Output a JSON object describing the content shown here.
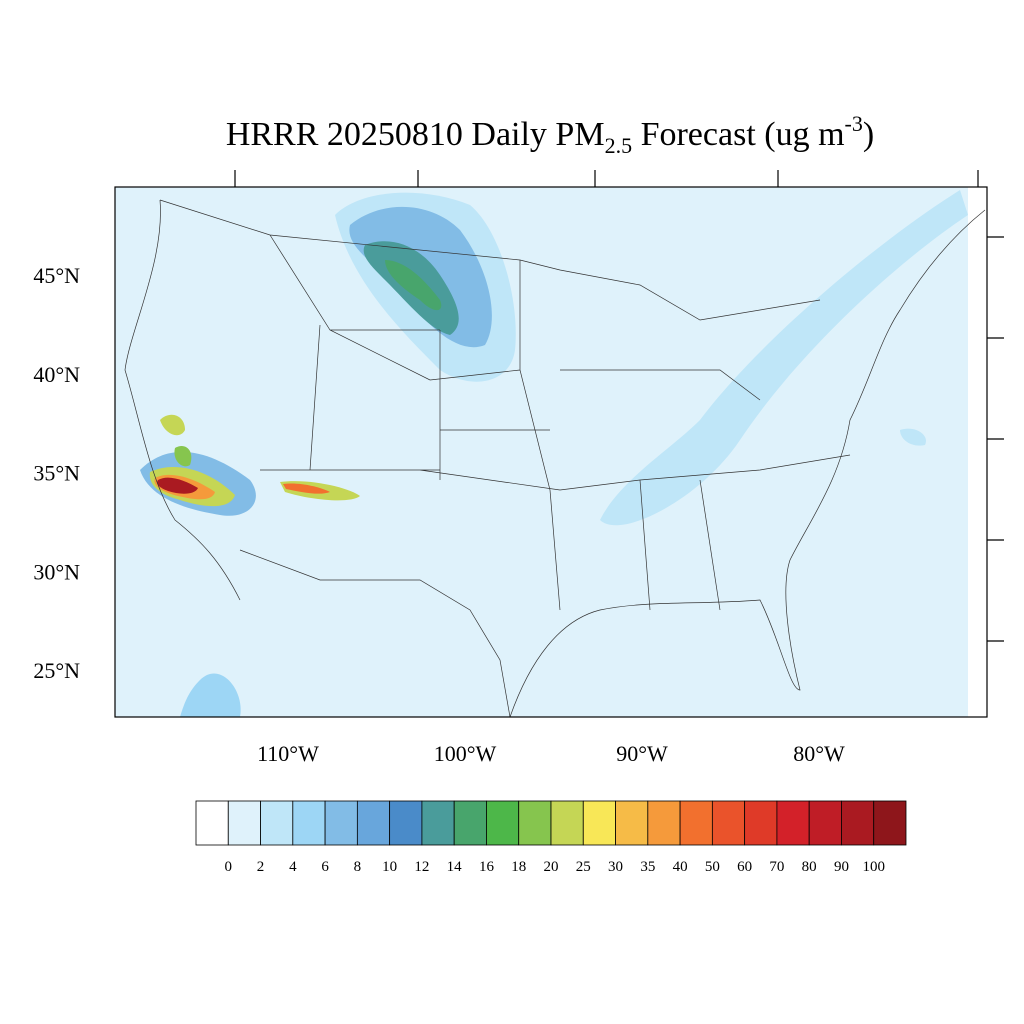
{
  "chart_data": {
    "type": "map",
    "title": {
      "main": "HRRR 20250810 Daily PM",
      "sub": "2.5",
      "mid": " Forecast (ug m",
      "sup": "-3",
      "end": ")"
    },
    "yticks": [
      {
        "value": 45,
        "label": "45°N"
      },
      {
        "value": 40,
        "label": "40°N"
      },
      {
        "value": 35,
        "label": "35°N"
      },
      {
        "value": 30,
        "label": "30°N"
      },
      {
        "value": 25,
        "label": "25°N"
      }
    ],
    "xticks": [
      {
        "value": -110,
        "label": "110°W"
      },
      {
        "value": -100,
        "label": "100°W"
      },
      {
        "value": -90,
        "label": "90°W"
      },
      {
        "value": -80,
        "label": "80°W"
      }
    ],
    "colorbar": {
      "levels": [
        0,
        2,
        4,
        6,
        8,
        10,
        12,
        14,
        16,
        18,
        20,
        25,
        30,
        35,
        40,
        50,
        60,
        70,
        80,
        90,
        100
      ],
      "colors": [
        "#ffffff",
        "#dff2fb",
        "#bfe6f8",
        "#9dd6f5",
        "#82bce6",
        "#68a6dc",
        "#4a8bc9",
        "#4a9c9b",
        "#48a56c",
        "#4db749",
        "#86c54e",
        "#c5d655",
        "#f8e757",
        "#f6bb47",
        "#f59a3b",
        "#f2702e",
        "#ea532b",
        "#df3a28",
        "#d32129",
        "#bf1d26",
        "#aa1a21",
        "#8e161b"
      ]
    }
  }
}
